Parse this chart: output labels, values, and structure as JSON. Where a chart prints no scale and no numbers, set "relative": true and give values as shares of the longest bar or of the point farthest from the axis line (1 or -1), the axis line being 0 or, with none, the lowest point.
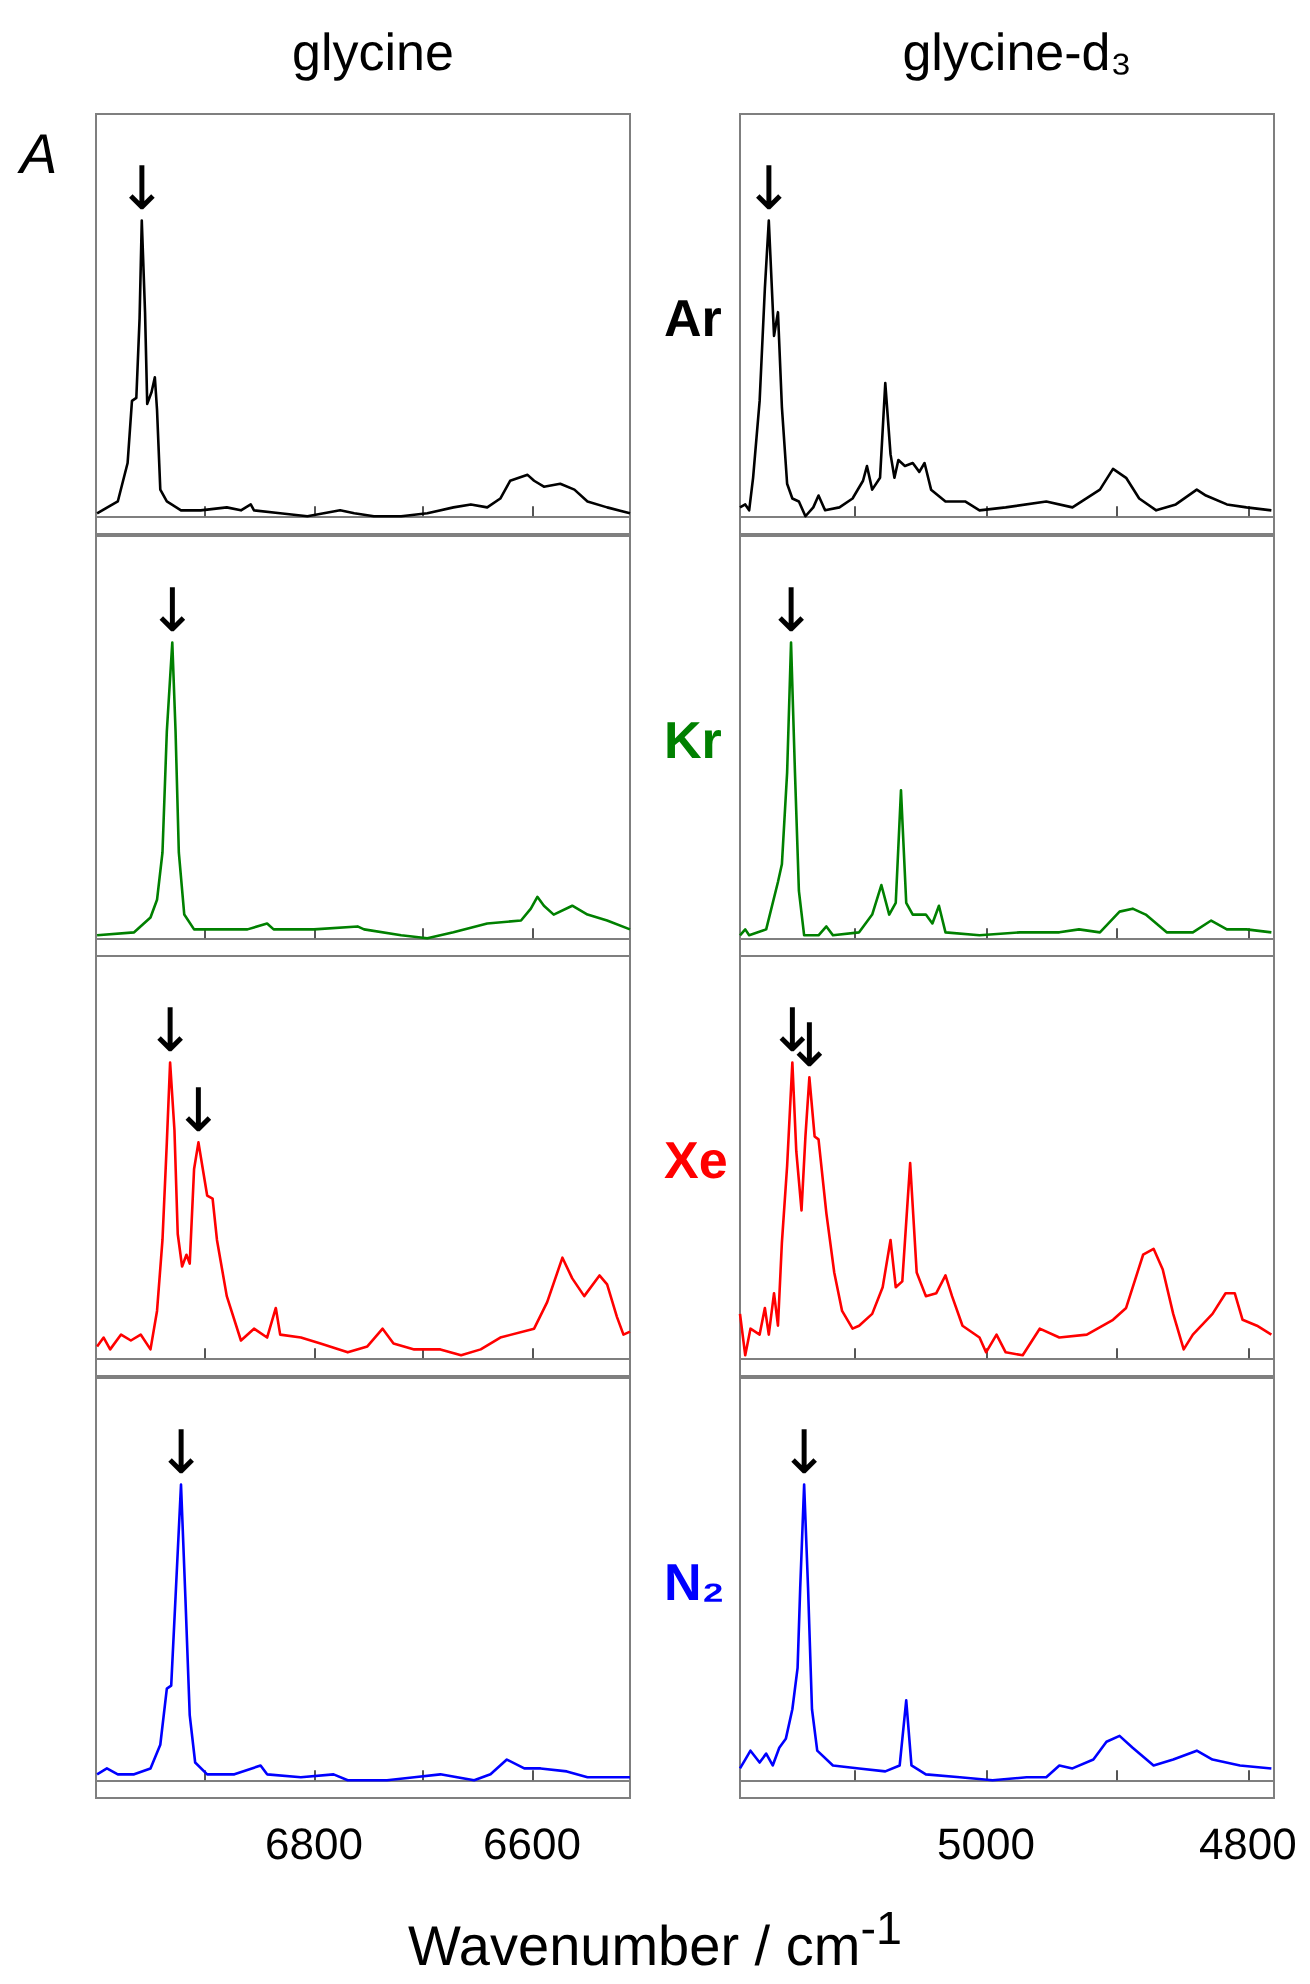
{
  "chart_data": [
    {
      "type": "line",
      "title": "glycine",
      "ylabel": "A",
      "color": "#000000",
      "relative": true,
      "marker": "none",
      "tick_labels": false,
      "xlim": [
        7000,
        6510
      ],
      "xticks": [
        {
          "value": 6900,
          "label": null
        },
        {
          "value": 6800,
          "label": null
        },
        {
          "value": 6700,
          "label": null
        },
        {
          "value": 6600,
          "label": null
        }
      ],
      "annotations": [
        {
          "text": "↓",
          "x": 6958,
          "y": 1
        }
      ],
      "x": [
        6999,
        6980,
        6971,
        6967,
        6963,
        6960,
        6958,
        6955,
        6953,
        6949,
        6946,
        6944,
        6941,
        6935,
        6922,
        6904,
        6880,
        6867,
        6858,
        6855,
        6831,
        6806,
        6776,
        6763,
        6745,
        6720,
        6696,
        6672,
        6656,
        6641,
        6629,
        6620,
        6604,
        6598,
        6589,
        6574,
        6561,
        6549,
        6531,
        6510
      ],
      "values": [
        0.01,
        0.05,
        0.18,
        0.39,
        0.4,
        0.67,
        1,
        0.69,
        0.38,
        0.42,
        0.47,
        0.36,
        0.09,
        0.05,
        0.02,
        0.02,
        0.03,
        0.02,
        0.04,
        0.02,
        0.01,
        0,
        0.02,
        0.01,
        0,
        0,
        0.01,
        0.03,
        0.04,
        0.03,
        0.06,
        0.12,
        0.14,
        0.12,
        0.1,
        0.11,
        0.09,
        0.05,
        0.03,
        0.01
      ]
    },
    {
      "type": "line",
      "title": "glycine-d₃",
      "color": "#000000",
      "relative": true,
      "marker": "none",
      "tick_labels": false,
      "xlim": [
        5188,
        4780
      ],
      "xticks": [
        {
          "value": 5100,
          "label": null
        },
        {
          "value": 5000,
          "label": null
        },
        {
          "value": 4900,
          "label": null
        },
        {
          "value": 4800,
          "label": null
        }
      ],
      "annotations": [
        "Ar",
        {
          "text": "↓",
          "x": 5166,
          "y": 1
        }
      ],
      "x": [
        5188,
        5184,
        5181,
        5178,
        5173,
        5169,
        5166,
        5162,
        5159,
        5156,
        5152,
        5148,
        5143,
        5138,
        5132,
        5128,
        5123,
        5112,
        5102,
        5094,
        5091,
        5087,
        5081,
        5077,
        5073,
        5070,
        5067,
        5062,
        5056,
        5051,
        5047,
        5042,
        5031,
        5016,
        5005,
        4985,
        4954,
        4934,
        4913,
        4903,
        4893,
        4883,
        4870,
        4855,
        4839,
        4832,
        4816,
        4801,
        4782
      ],
      "values": [
        0.03,
        0.04,
        0.02,
        0.13,
        0.39,
        0.77,
        1,
        0.61,
        0.69,
        0.37,
        0.11,
        0.06,
        0.05,
        0,
        0.03,
        0.07,
        0.02,
        0.03,
        0.06,
        0.12,
        0.17,
        0.09,
        0.13,
        0.45,
        0.21,
        0.13,
        0.19,
        0.17,
        0.18,
        0.15,
        0.18,
        0.09,
        0.05,
        0.05,
        0.02,
        0.03,
        0.05,
        0.03,
        0.09,
        0.16,
        0.13,
        0.06,
        0.02,
        0.04,
        0.09,
        0.07,
        0.04,
        0.03,
        0.02
      ]
    },
    {
      "type": "line",
      "color": "#008000",
      "relative": true,
      "marker": "none",
      "tick_labels": false,
      "xlim": [
        7000,
        6510
      ],
      "xticks": [
        {
          "value": 6900,
          "label": null
        },
        {
          "value": 6800,
          "label": null
        },
        {
          "value": 6700,
          "label": null
        },
        {
          "value": 6600,
          "label": null
        }
      ],
      "annotations": [
        {
          "text": "↓",
          "x": 6930,
          "y": 1
        }
      ],
      "x": [
        6999,
        6965,
        6950,
        6944,
        6939,
        6935,
        6930,
        6927,
        6924,
        6919,
        6910,
        6886,
        6861,
        6843,
        6837,
        6800,
        6760,
        6754,
        6720,
        6696,
        6672,
        6641,
        6610,
        6601,
        6595,
        6589,
        6580,
        6563,
        6549,
        6531,
        6510
      ],
      "values": [
        0.01,
        0.02,
        0.07,
        0.13,
        0.29,
        0.7,
        1,
        0.7,
        0.29,
        0.08,
        0.03,
        0.03,
        0.03,
        0.05,
        0.03,
        0.03,
        0.04,
        0.03,
        0.01,
        0,
        0.02,
        0.05,
        0.06,
        0.1,
        0.14,
        0.11,
        0.08,
        0.11,
        0.08,
        0.06,
        0.03
      ]
    },
    {
      "type": "line",
      "color": "#008000",
      "relative": true,
      "marker": "none",
      "tick_labels": false,
      "xlim": [
        5188,
        4780
      ],
      "xticks": [
        {
          "value": 5100,
          "label": null
        },
        {
          "value": 5000,
          "label": null
        },
        {
          "value": 4900,
          "label": null
        },
        {
          "value": 4800,
          "label": null
        }
      ],
      "annotations": [
        "Kr",
        {
          "text": "↓",
          "x": 5149,
          "y": 1
        }
      ],
      "x": [
        5188,
        5184,
        5181,
        5168,
        5159,
        5156,
        5152,
        5149,
        5146,
        5143,
        5139,
        5128,
        5122,
        5117,
        5097,
        5087,
        5080,
        5074,
        5069,
        5065,
        5061,
        5056,
        5046,
        5041,
        5036,
        5031,
        5005,
        4974,
        4944,
        4929,
        4913,
        4898,
        4888,
        4878,
        4862,
        4842,
        4828,
        4816,
        4801,
        4782
      ],
      "values": [
        0.01,
        0.03,
        0.01,
        0.03,
        0.19,
        0.25,
        0.56,
        1,
        0.56,
        0.16,
        0.01,
        0.01,
        0.04,
        0.01,
        0.02,
        0.08,
        0.18,
        0.08,
        0.12,
        0.5,
        0.12,
        0.08,
        0.08,
        0.05,
        0.11,
        0.02,
        0.01,
        0.02,
        0.02,
        0.03,
        0.02,
        0.09,
        0.1,
        0.08,
        0.02,
        0.02,
        0.06,
        0.03,
        0.03,
        0.02
      ]
    },
    {
      "type": "line",
      "color": "#ff0000",
      "relative": true,
      "marker": "none",
      "tick_labels": false,
      "xlim": [
        7000,
        6510
      ],
      "xticks": [
        {
          "value": 6900,
          "label": null
        },
        {
          "value": 6800,
          "label": null
        },
        {
          "value": 6700,
          "label": null
        },
        {
          "value": 6600,
          "label": null
        }
      ],
      "annotations": [
        {
          "text": "↓",
          "x": 6932,
          "y": 1
        },
        {
          "text": "↓",
          "x": 6906,
          "y": 0.73
        }
      ],
      "x": [
        6999,
        6993,
        6987,
        6977,
        6968,
        6959,
        6950,
        6944,
        6939,
        6935,
        6932,
        6928,
        6925,
        6921,
        6917,
        6914,
        6910,
        6906,
        6902,
        6898,
        6893,
        6889,
        6880,
        6867,
        6855,
        6843,
        6835,
        6831,
        6812,
        6794,
        6769,
        6751,
        6737,
        6727,
        6708,
        6684,
        6665,
        6647,
        6629,
        6598,
        6586,
        6572,
        6563,
        6552,
        6538,
        6531,
        6522,
        6516,
        6510
      ],
      "values": [
        0.04,
        0.07,
        0.03,
        0.08,
        0.06,
        0.08,
        0.03,
        0.16,
        0.4,
        0.73,
        1,
        0.77,
        0.42,
        0.31,
        0.35,
        0.32,
        0.64,
        0.73,
        0.64,
        0.55,
        0.54,
        0.4,
        0.21,
        0.06,
        0.1,
        0.07,
        0.17,
        0.08,
        0.07,
        0.05,
        0.02,
        0.04,
        0.1,
        0.05,
        0.03,
        0.03,
        0.01,
        0.03,
        0.07,
        0.1,
        0.19,
        0.34,
        0.27,
        0.21,
        0.28,
        0.25,
        0.14,
        0.08,
        0.09
      ]
    },
    {
      "type": "line",
      "color": "#ff0000",
      "relative": true,
      "marker": "none",
      "tick_labels": false,
      "xlim": [
        5188,
        4780
      ],
      "xticks": [
        {
          "value": 5100,
          "label": null
        },
        {
          "value": 5000,
          "label": null
        },
        {
          "value": 4900,
          "label": null
        },
        {
          "value": 4800,
          "label": null
        }
      ],
      "annotations": [
        "Xe",
        {
          "text": "↓",
          "x": 5148,
          "y": 1
        },
        {
          "text": "↓",
          "x": 5135,
          "y": 0.95
        }
      ],
      "x": [
        5188,
        5184,
        5180,
        5173,
        5169,
        5166,
        5162,
        5159,
        5156,
        5152,
        5148,
        5145,
        5141,
        5138,
        5135,
        5131,
        5128,
        5122,
        5116,
        5110,
        5102,
        5097,
        5087,
        5079,
        5073,
        5069,
        5064,
        5058,
        5053,
        5046,
        5038,
        5031,
        5026,
        5018,
        5005,
        5000,
        4992,
        4985,
        4972,
        4959,
        4944,
        4923,
        4903,
        4893,
        4880,
        4872,
        4865,
        4857,
        4849,
        4842,
        4827,
        4817,
        4810,
        4804,
        4793,
        4782
      ],
      "values": [
        0.15,
        0.01,
        0.1,
        0.08,
        0.17,
        0.08,
        0.22,
        0.11,
        0.39,
        0.65,
        1,
        0.7,
        0.5,
        0.75,
        0.95,
        0.75,
        0.74,
        0.49,
        0.29,
        0.16,
        0.1,
        0.11,
        0.15,
        0.24,
        0.4,
        0.24,
        0.26,
        0.66,
        0.29,
        0.21,
        0.22,
        0.28,
        0.21,
        0.11,
        0.07,
        0.02,
        0.08,
        0.02,
        0.01,
        0.1,
        0.07,
        0.08,
        0.13,
        0.17,
        0.35,
        0.37,
        0.3,
        0.15,
        0.03,
        0.08,
        0.15,
        0.22,
        0.22,
        0.13,
        0.11,
        0.08
      ]
    },
    {
      "type": "line",
      "xlabel": "Wavenumber / cm$^{-1}$",
      "color": "#0000ff",
      "relative": true,
      "marker": "none",
      "tick_labels": "x",
      "xlim": [
        7000,
        6510
      ],
      "xticks": [
        {
          "value": 6900,
          "label": null
        },
        6800,
        {
          "value": 6700,
          "label": null
        },
        6600
      ],
      "annotations": [
        {
          "text": "↓",
          "x": 6922,
          "y": 1
        }
      ],
      "x": [
        6999,
        6990,
        6980,
        6965,
        6950,
        6941,
        6935,
        6931,
        6927,
        6922,
        6918,
        6914,
        6909,
        6898,
        6873,
        6849,
        6843,
        6812,
        6782,
        6769,
        6733,
        6708,
        6684,
        6653,
        6638,
        6623,
        6607,
        6592,
        6568,
        6549,
        6510
      ],
      "values": [
        0.02,
        0.04,
        0.02,
        0.02,
        0.04,
        0.12,
        0.31,
        0.32,
        0.62,
        1,
        0.62,
        0.22,
        0.06,
        0.02,
        0.02,
        0.05,
        0.02,
        0.01,
        0.02,
        0,
        0,
        0.01,
        0.02,
        0,
        0.02,
        0.07,
        0.04,
        0.04,
        0.03,
        0.01,
        0.01
      ]
    },
    {
      "type": "line",
      "color": "#0000ff",
      "relative": true,
      "marker": "none",
      "tick_labels": "x",
      "xlim": [
        5188,
        4780
      ],
      "xticks": [
        {
          "value": 5100,
          "label": null
        },
        5000,
        {
          "value": 4900,
          "label": null
        },
        4800
      ],
      "annotations": [
        "N₂",
        {
          "text": "↓",
          "x": 5139,
          "y": 1
        }
      ],
      "x": [
        5188,
        5184,
        5180,
        5173,
        5168,
        5163,
        5158,
        5153,
        5148,
        5144,
        5142,
        5139,
        5136,
        5133,
        5129,
        5117,
        5097,
        5077,
        5066,
        5061,
        5057,
        5046,
        5020,
        4995,
        4969,
        4954,
        4944,
        4934,
        4918,
        4908,
        4898,
        4888,
        4872,
        4857,
        4839,
        4827,
        4806,
        4782
      ],
      "values": [
        0.04,
        0.07,
        0.1,
        0.06,
        0.09,
        0.05,
        0.11,
        0.14,
        0.24,
        0.38,
        0.65,
        1,
        0.65,
        0.24,
        0.1,
        0.05,
        0.04,
        0.03,
        0.05,
        0.27,
        0.05,
        0.02,
        0.01,
        0,
        0.01,
        0.01,
        0.05,
        0.04,
        0.07,
        0.13,
        0.15,
        0.11,
        0.05,
        0.07,
        0.1,
        0.07,
        0.05,
        0.04
      ]
    }
  ]
}
